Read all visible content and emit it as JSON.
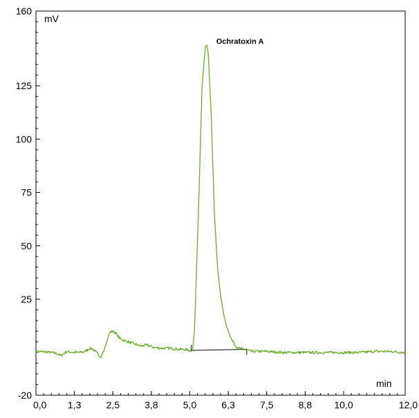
{
  "chart_data": {
    "type": "line",
    "title": "",
    "xlabel": "min",
    "ylabel": "mV",
    "xlim": [
      0,
      12
    ],
    "ylim": [
      -20,
      160
    ],
    "x_ticks": [
      {
        "value": 0.0,
        "label": "0,0"
      },
      {
        "value": 1.25,
        "label": "1,3"
      },
      {
        "value": 2.5,
        "label": "2,5"
      },
      {
        "value": 3.75,
        "label": "3,8"
      },
      {
        "value": 5.0,
        "label": "5,0"
      },
      {
        "value": 6.25,
        "label": "6,3"
      },
      {
        "value": 7.5,
        "label": "7,5"
      },
      {
        "value": 8.75,
        "label": "8,8"
      },
      {
        "value": 10.0,
        "label": "10,0"
      },
      {
        "value": 12.0,
        "label": "12,0"
      }
    ],
    "y_ticks": [
      {
        "value": -20,
        "label": "-20"
      },
      {
        "value": 25,
        "label": "25"
      },
      {
        "value": 50,
        "label": "50"
      },
      {
        "value": 75,
        "label": "75"
      },
      {
        "value": 100,
        "label": "100"
      },
      {
        "value": 125,
        "label": "125"
      },
      {
        "value": 160,
        "label": "160"
      }
    ],
    "series": [
      {
        "color": "#6aaa2a",
        "x": [
          0.0,
          0.3,
          0.5,
          0.7,
          0.8,
          0.9,
          1.0,
          1.2,
          1.4,
          1.6,
          1.75,
          1.85,
          2.0,
          2.1,
          2.2,
          2.3,
          2.4,
          2.5,
          2.6,
          2.7,
          2.8,
          3.0,
          3.2,
          3.4,
          3.6,
          3.8,
          4.0,
          4.2,
          4.4,
          4.6,
          4.8,
          5.0,
          5.05,
          5.1,
          5.15,
          5.2,
          5.3,
          5.4,
          5.5,
          5.55,
          5.6,
          5.7,
          5.8,
          5.9,
          6.0,
          6.1,
          6.2,
          6.3,
          6.4,
          6.5,
          6.6,
          6.75,
          6.9,
          7.0,
          7.5,
          8.0,
          8.5,
          9.0,
          9.5,
          10.0,
          10.5,
          11.0,
          11.5,
          12.0
        ],
        "y": [
          0.5,
          0.3,
          0,
          -0.5,
          -1.5,
          -0.5,
          0.5,
          0,
          0,
          0.5,
          2,
          1.5,
          -0.5,
          -2,
          0.5,
          5,
          9.5,
          10,
          9,
          7,
          6,
          5,
          4,
          3,
          3.5,
          2.5,
          2,
          2,
          2,
          1.5,
          1.5,
          1,
          1,
          2,
          10,
          30,
          75,
          125,
          143,
          144,
          140,
          110,
          65,
          40,
          27,
          18,
          12,
          8,
          5,
          3,
          2,
          1.5,
          1,
          0.5,
          0.5,
          0,
          0,
          0,
          0,
          0,
          0,
          0.5,
          0.5,
          0
        ]
      }
    ],
    "baseline": {
      "x": [
        5.05,
        6.85
      ],
      "y": [
        1,
        1.5
      ]
    },
    "annotations": [
      {
        "text": "Ochratoxin A",
        "x": 5.5,
        "y": 144
      }
    ]
  }
}
